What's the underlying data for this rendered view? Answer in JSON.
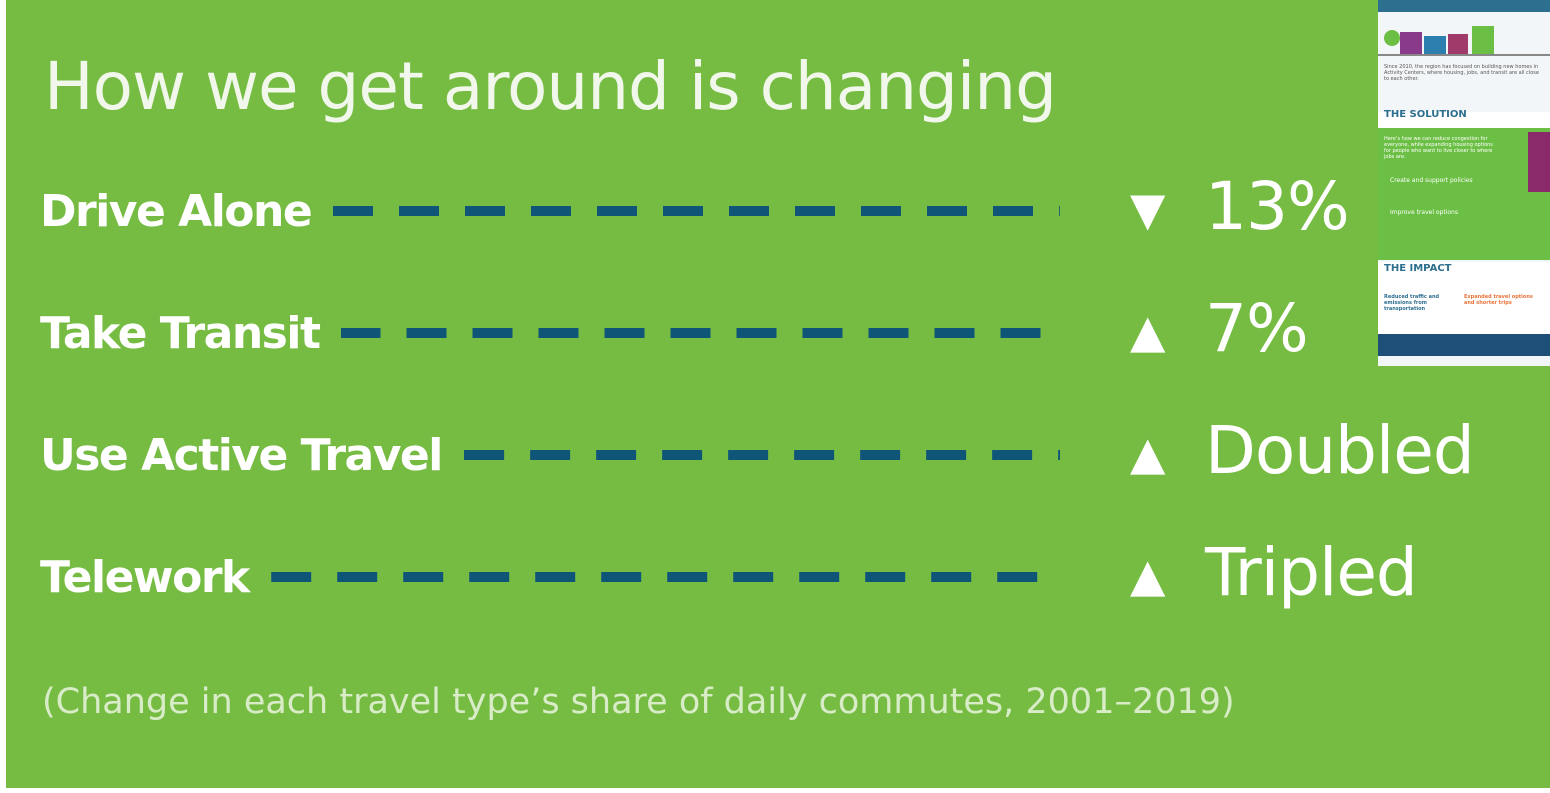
{
  "title": "How we get around is changing",
  "rows": [
    {
      "label": "Drive Alone",
      "marker": "▼",
      "value": "13%"
    },
    {
      "label": "Take Transit",
      "marker": "▲",
      "value": "7%"
    },
    {
      "label": "Use Active Travel",
      "marker": "▲",
      "value": "Doubled"
    },
    {
      "label": "Telework",
      "marker": "▲",
      "value": "Tripled"
    }
  ],
  "footnote": "(Change in each travel type’s share of daily commutes, 2001–2019)",
  "thumbnail": {
    "intro": "Since 2010, the region has focused on building new homes in Activity Centers, where housing, jobs, and transit are all close to each other.",
    "solution_heading": "THE SOLUTION",
    "solution_text": "Here’s how we can reduce congestion for everyone, while expanding housing options for people who want to live closer to where jobs are.",
    "solution_items": [
      "Create and support policies",
      "Improve travel options"
    ],
    "impact_heading": "THE IMPACT",
    "impact_items": [
      "Reduced traffic and emissions from transportation",
      "Expanded travel options and shorter trips"
    ]
  }
}
